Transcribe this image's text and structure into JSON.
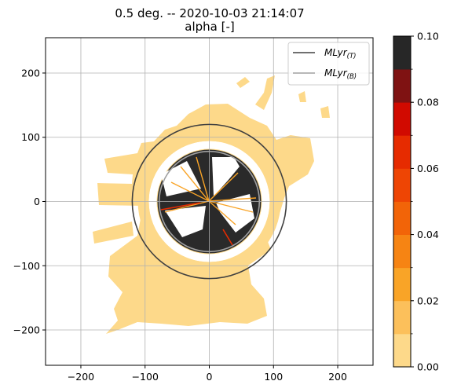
{
  "chart_data": {
    "type": "heatmap",
    "title": "0.5 deg. -- 2020-10-03 21:14:07",
    "subtitle": "alpha [-]",
    "xlim": [
      -255,
      255
    ],
    "ylim": [
      -255,
      255
    ],
    "x_ticks": [
      -200,
      -100,
      0,
      100,
      200
    ],
    "x_tick_labels": [
      "−200",
      "−100",
      "0",
      "100",
      "200"
    ],
    "y_ticks": [
      200,
      100,
      0,
      -100,
      -200
    ],
    "y_tick_labels": [
      "200",
      "100",
      "0",
      "−100",
      "−200"
    ],
    "grid": true,
    "legend_position": "upper right",
    "melting_layer": [
      {
        "name": "MLyr_top",
        "label_main": "MLyr",
        "label_sub": "(T)",
        "radius": 120,
        "color": "#404040"
      },
      {
        "name": "MLyr_bottom",
        "label_main": "MLyr",
        "label_sub": "(B)",
        "radius": 78,
        "color": "#a0a0a0"
      }
    ],
    "colorbar": {
      "min": 0.0,
      "max": 0.1,
      "ticks": [
        0.0,
        0.02,
        0.04,
        0.06,
        0.08,
        0.1
      ],
      "tick_labels": [
        "0.00",
        "0.02",
        "0.04",
        "0.06",
        "0.08",
        "0.10"
      ],
      "bins": [
        {
          "from": 0.0,
          "to": 0.01,
          "color": "#fdd98a"
        },
        {
          "from": 0.01,
          "to": 0.02,
          "color": "#fcc05b"
        },
        {
          "from": 0.02,
          "to": 0.03,
          "color": "#f9a427"
        },
        {
          "from": 0.03,
          "to": 0.04,
          "color": "#f68413"
        },
        {
          "from": 0.04,
          "to": 0.05,
          "color": "#f26408"
        },
        {
          "from": 0.05,
          "to": 0.06,
          "color": "#ee4504"
        },
        {
          "from": 0.06,
          "to": 0.07,
          "color": "#e62b00"
        },
        {
          "from": 0.07,
          "to": 0.08,
          "color": "#d10a00"
        },
        {
          "from": 0.08,
          "to": 0.09,
          "color": "#7f1212"
        },
        {
          "from": 0.09,
          "to": 0.1,
          "color": "#272727"
        }
      ]
    },
    "field_colors": {
      "low_alpha": "#fdd98a",
      "high_alpha": "#2a2a2a",
      "mid_alpha": "#f9a427",
      "gap": "#ffffff"
    }
  }
}
